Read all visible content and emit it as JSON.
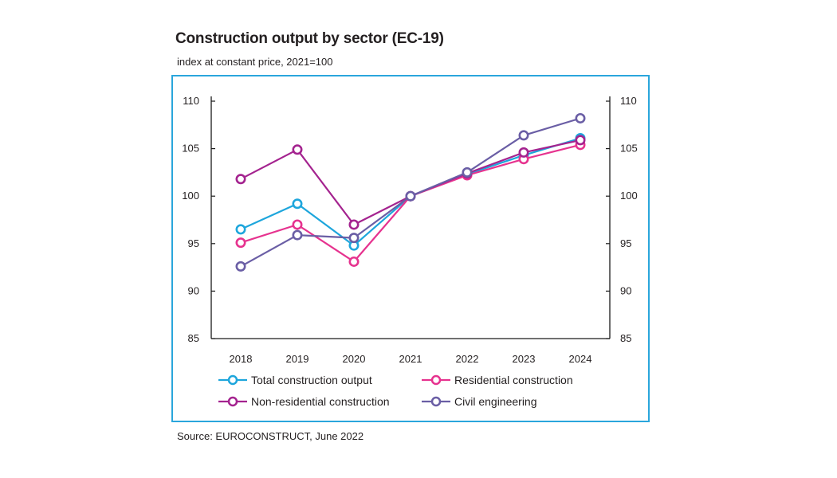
{
  "title": "Construction output by sector (EC-19)",
  "subtitle": "index at constant price, 2021=100",
  "source": "Source: EUROCONSTRUCT, June 2022",
  "chart_data": {
    "type": "line",
    "categories": [
      "2018",
      "2019",
      "2020",
      "2021",
      "2022",
      "2023",
      "2024"
    ],
    "ylim": [
      85,
      110
    ],
    "yticks": [
      "85",
      "90",
      "95",
      "100",
      "105",
      "110"
    ],
    "grid": false,
    "legend_position": "bottom",
    "series": [
      {
        "name": "Total construction output",
        "color": "#1ea6dc",
        "values": [
          96.5,
          99.2,
          94.8,
          100.0,
          102.3,
          104.3,
          106.1
        ]
      },
      {
        "name": "Residential construction",
        "color": "#e6338f",
        "values": [
          95.1,
          97.0,
          93.1,
          100.0,
          102.2,
          103.9,
          105.4
        ]
      },
      {
        "name": "Non-residential construction",
        "color": "#a4238f",
        "values": [
          101.8,
          104.9,
          97.0,
          100.0,
          102.4,
          104.6,
          105.9
        ]
      },
      {
        "name": "Civil engineering",
        "color": "#6a5ea5",
        "values": [
          92.6,
          95.9,
          95.6,
          100.0,
          102.5,
          106.4,
          108.2
        ]
      }
    ]
  },
  "colors": {
    "frame_border": "#2aa6dc",
    "axis": "#1a1a1a"
  }
}
